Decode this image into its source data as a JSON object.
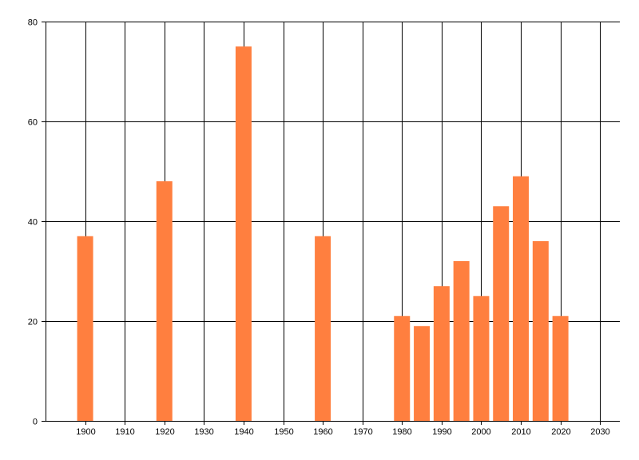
{
  "chart_data": {
    "type": "bar",
    "title": "",
    "xlabel": "",
    "ylabel": "",
    "x": [
      1900,
      1920,
      1940,
      1960,
      1980,
      1985,
      1990,
      1995,
      2000,
      2005,
      2010,
      2015,
      2020
    ],
    "values": [
      37,
      48,
      75,
      37,
      21,
      19,
      27,
      32,
      25,
      43,
      49,
      36,
      21
    ],
    "xlim": [
      1890,
      2035
    ],
    "ylim": [
      0,
      80
    ],
    "xticks": [
      "1900",
      "1910",
      "1920",
      "1930",
      "1940",
      "1950",
      "1960",
      "1970",
      "1980",
      "1990",
      "2000",
      "2010",
      "2020",
      "2030"
    ],
    "yticks": [
      "0",
      "20",
      "40",
      "60",
      "80"
    ],
    "grid": true,
    "bar_color": "#ff7f3f",
    "grid_color": "#000000"
  }
}
